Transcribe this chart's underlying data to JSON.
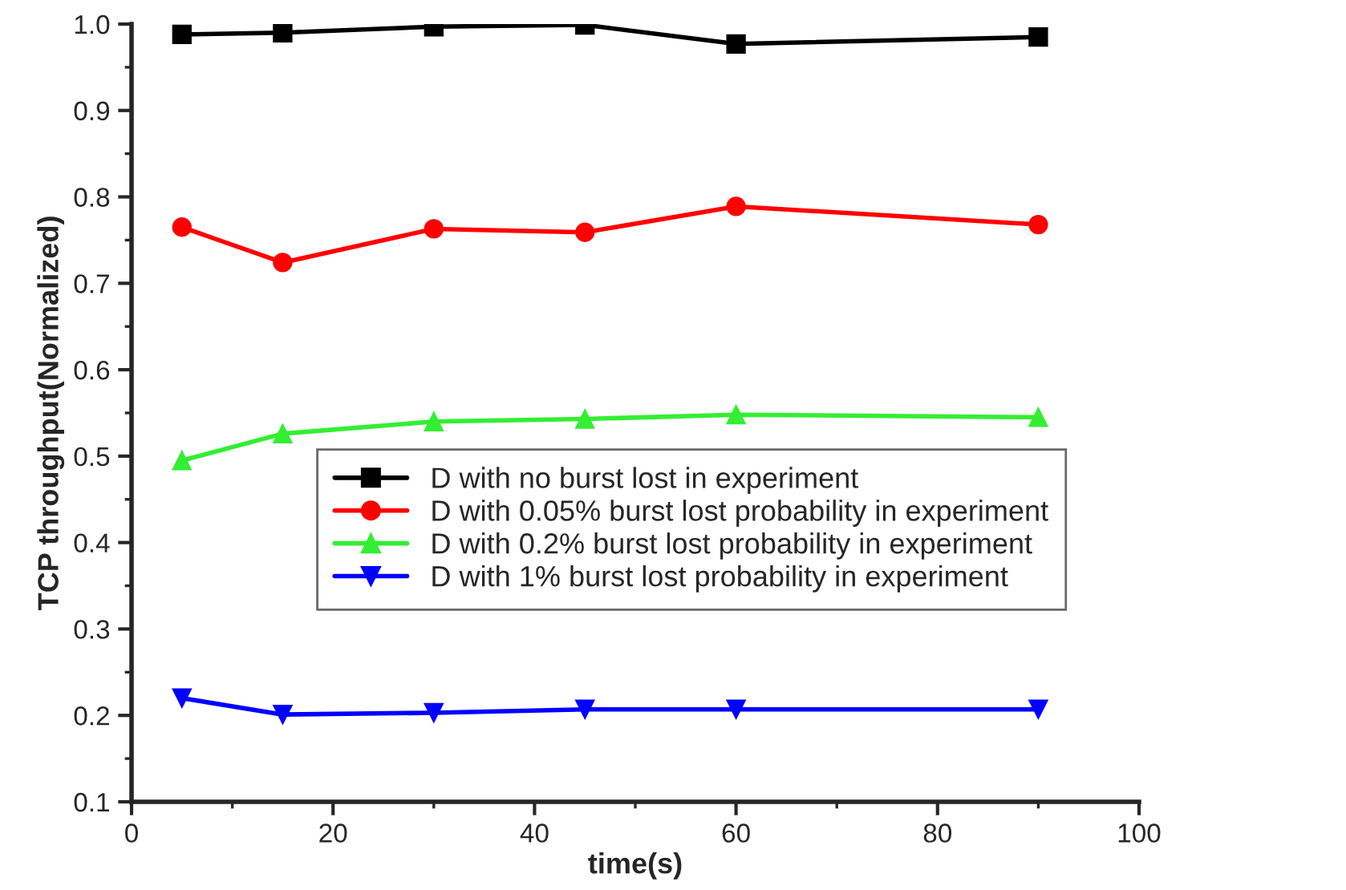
{
  "chart_data": {
    "type": "line",
    "xlabel": "time(s)",
    "ylabel": "TCP throughput(Normalized)",
    "x": [
      5,
      15,
      30,
      45,
      60,
      90
    ],
    "series": [
      {
        "name": "D with no burst lost in experiment",
        "color": "#000000",
        "marker": "square",
        "values": [
          0.988,
          0.99,
          0.997,
          0.999,
          0.977,
          0.985
        ]
      },
      {
        "name": "D with 0.05% burst lost probability in experiment",
        "color": "#ff0000",
        "marker": "circle",
        "values": [
          0.765,
          0.724,
          0.763,
          0.759,
          0.789,
          0.768
        ]
      },
      {
        "name": "D with 0.2% burst lost probability in experiment",
        "color": "#33ee33",
        "marker": "triangle",
        "values": [
          0.495,
          0.526,
          0.54,
          0.543,
          0.548,
          0.545
        ]
      },
      {
        "name": "D with 1% burst lost probability in experiment",
        "color": "#0000ff",
        "marker": "triangle_down",
        "values": [
          0.22,
          0.201,
          0.203,
          0.207,
          0.207,
          0.207
        ]
      }
    ],
    "xlim": [
      0,
      100
    ],
    "xticks": [
      0,
      20,
      40,
      60,
      80,
      100
    ],
    "ylim": [
      0.1,
      1.0
    ],
    "yticks": [
      0.1,
      0.2,
      0.3,
      0.4,
      0.5,
      0.6,
      0.7,
      0.8,
      0.9,
      {
        "value": 1.0,
        "label": "1.0"
      }
    ],
    "grid": false,
    "legend": "right",
    "line_style": "solid"
  }
}
